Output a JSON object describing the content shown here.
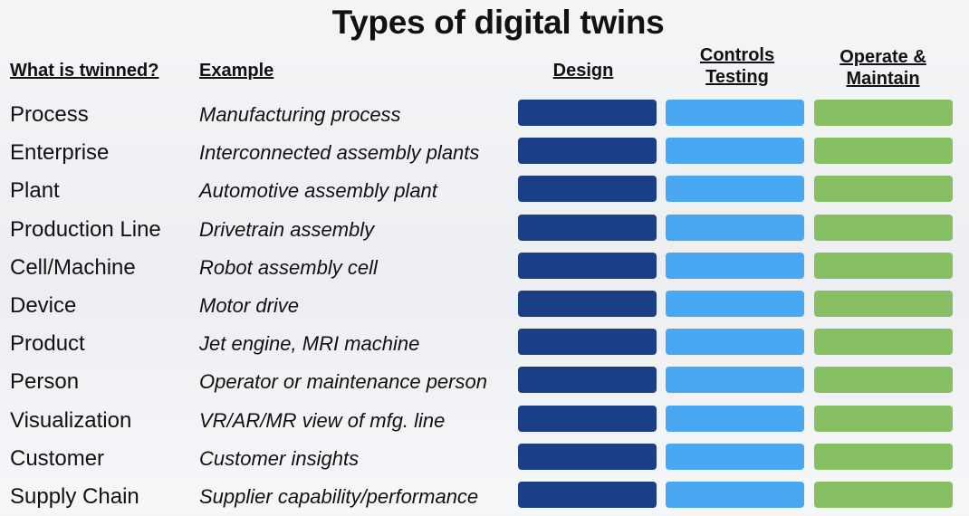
{
  "title": "Types of digital twins",
  "headers": {
    "what": "What is twinned?",
    "example": "Example",
    "design": "Design",
    "controls_line1": "Controls",
    "controls_line2": "Testing",
    "operate_line1": "Operate &",
    "operate_line2": "Maintain"
  },
  "colors": {
    "design": "#1a3f86",
    "controls": "#4aa8f2",
    "operate": "#86c063"
  },
  "rows": [
    {
      "what": "Process",
      "example": "Manufacturing process"
    },
    {
      "what": "Enterprise",
      "example": "Interconnected assembly plants"
    },
    {
      "what": "Plant",
      "example": "Automotive assembly plant"
    },
    {
      "what": "Production Line",
      "example": "Drivetrain assembly"
    },
    {
      "what": "Cell/Machine",
      "example": "Robot assembly cell"
    },
    {
      "what": "Device",
      "example": "Motor drive"
    },
    {
      "what": "Product",
      "example": "Jet engine, MRI machine"
    },
    {
      "what": "Person",
      "example": "Operator or maintenance person"
    },
    {
      "what": "Visualization",
      "example": "VR/AR/MR view of mfg. line"
    },
    {
      "what": "Customer",
      "example": "Customer insights"
    },
    {
      "what": "Supply Chain",
      "example": "Supplier capability/performance"
    }
  ]
}
